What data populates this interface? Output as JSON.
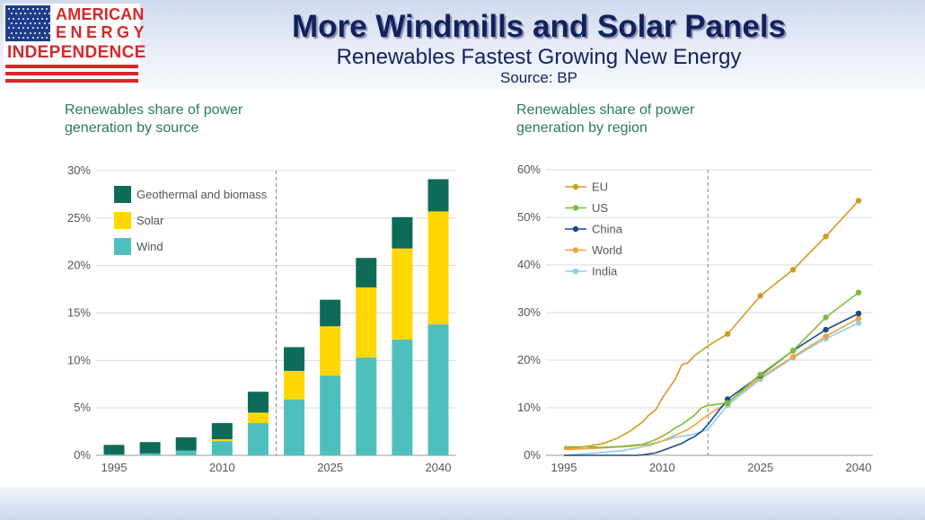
{
  "header": {
    "logo": {
      "line1": "AMERICAN",
      "line2": "ENERGY",
      "line3": "INDEPENDENCE"
    },
    "title": "More Windmills and Solar Panels",
    "subtitle": "Renewables Fastest Growing New Energy",
    "source": "Source: BP"
  },
  "colors": {
    "geothermal": "#0e6b58",
    "solar": "#ffd700",
    "wind": "#4fbfbe",
    "eu": "#cf9b22",
    "us": "#7dbc36",
    "china": "#1b4a8c",
    "world": "#f2a33a",
    "india": "#8ccfee",
    "title_green": "#2a7a5a",
    "header_navy": "#13225e"
  },
  "chart_data": [
    {
      "type": "bar",
      "title": "Renewables share of power\ngeneration by source",
      "x_tick_labels": [
        "1995",
        "2010",
        "2025",
        "2040"
      ],
      "y_tick_labels": [
        "0%",
        "5%",
        "10%",
        "15%",
        "20%",
        "25%",
        "30%"
      ],
      "ylim": [
        0,
        30
      ],
      "categories": [
        "1995",
        "2000",
        "2005",
        "2010",
        "2015",
        "2020",
        "2025",
        "2030",
        "2035",
        "2040"
      ],
      "series": [
        {
          "name": "Wind",
          "values": [
            0.1,
            0.2,
            0.5,
            1.5,
            3.4,
            5.9,
            8.4,
            10.3,
            12.2,
            13.8
          ]
        },
        {
          "name": "Solar",
          "values": [
            0,
            0,
            0,
            0.2,
            1.1,
            3.0,
            5.2,
            7.4,
            9.6,
            11.9
          ]
        },
        {
          "name": "Geothermal and biomass",
          "values": [
            1.0,
            1.2,
            1.4,
            1.7,
            2.2,
            2.5,
            2.8,
            3.1,
            3.3,
            3.4
          ]
        }
      ],
      "legend_order": [
        "Geothermal and biomass",
        "Solar",
        "Wind"
      ],
      "legend": "top-left",
      "divider_x": 2017.5
    },
    {
      "type": "line",
      "title": "Renewables share of power\ngeneration by region",
      "x_tick_labels": [
        "1995",
        "2010",
        "2025",
        "2040"
      ],
      "y_tick_labels": [
        "0%",
        "10%",
        "20%",
        "30%",
        "40%",
        "50%",
        "60%"
      ],
      "xlim": [
        1995,
        2040
      ],
      "ylim": [
        0,
        60
      ],
      "legend": "top-left",
      "divider_x": 2017,
      "series": [
        {
          "name": "EU",
          "x": [
            1995,
            1997,
            1999,
            2001,
            2003,
            2005,
            2006,
            2007,
            2008,
            2009,
            2010,
            2011,
            2012,
            2013,
            2014,
            2015,
            2016,
            2017,
            2020,
            2025,
            2030,
            2035,
            2040
          ],
          "y": [
            1.5,
            1.6,
            2.0,
            2.5,
            3.5,
            5,
            6,
            7,
            8.5,
            9.5,
            12,
            14,
            16,
            19,
            19.5,
            21,
            22,
            23,
            25.5,
            33.5,
            39,
            46,
            53.5
          ],
          "markers_from": 2020
        },
        {
          "name": "US",
          "x": [
            1995,
            1998,
            2001,
            2004,
            2007,
            2008,
            2009,
            2010,
            2011,
            2012,
            2013,
            2014,
            2015,
            2016,
            2017,
            2020,
            2025,
            2030,
            2035,
            2040
          ],
          "y": [
            1.8,
            1.8,
            1.7,
            1.9,
            2.3,
            2.8,
            3.3,
            4.0,
            4.8,
            5.8,
            6.5,
            7.5,
            8.5,
            10,
            10.5,
            11.0,
            17.0,
            22.0,
            29.0,
            34.2
          ],
          "markers_from": 2020
        },
        {
          "name": "China",
          "x": [
            1995,
            2000,
            2003,
            2005,
            2006,
            2007,
            2008,
            2009,
            2010,
            2011,
            2012,
            2013,
            2014,
            2015,
            2016,
            2017,
            2020,
            2025,
            2030,
            2035,
            2040
          ],
          "y": [
            0,
            0,
            0,
            0,
            0,
            0.1,
            0.3,
            0.5,
            1.0,
            1.5,
            2.0,
            2.5,
            3.3,
            4.0,
            5.0,
            6.5,
            11.8,
            16.8,
            22.0,
            26.4,
            29.8
          ],
          "markers_from": 2020
        },
        {
          "name": "World",
          "x": [
            1995,
            2000,
            2005,
            2008,
            2010,
            2012,
            2014,
            2015,
            2016,
            2017,
            2020,
            2025,
            2030,
            2035,
            2040
          ],
          "y": [
            1.2,
            1.5,
            1.9,
            2.3,
            3.0,
            4.2,
            5.5,
            6.4,
            7.5,
            8.5,
            11.0,
            16.4,
            20.7,
            25.0,
            28.8
          ],
          "markers_from": 2020
        },
        {
          "name": "India",
          "x": [
            1995,
            1997,
            2000,
            2002,
            2004,
            2006,
            2007,
            2008,
            2009,
            2010,
            2011,
            2012,
            2013,
            2014,
            2015,
            2016,
            2017,
            2020,
            2025,
            2030,
            2035,
            2040
          ],
          "y": [
            0,
            0.2,
            0.5,
            0.8,
            1.0,
            1.5,
            1.8,
            2.0,
            2.5,
            3.0,
            3.3,
            3.8,
            4.0,
            4.2,
            4.5,
            5.0,
            5.5,
            10.5,
            16.0,
            20.5,
            24.5,
            27.8
          ],
          "markers_from": 2020
        }
      ]
    }
  ]
}
